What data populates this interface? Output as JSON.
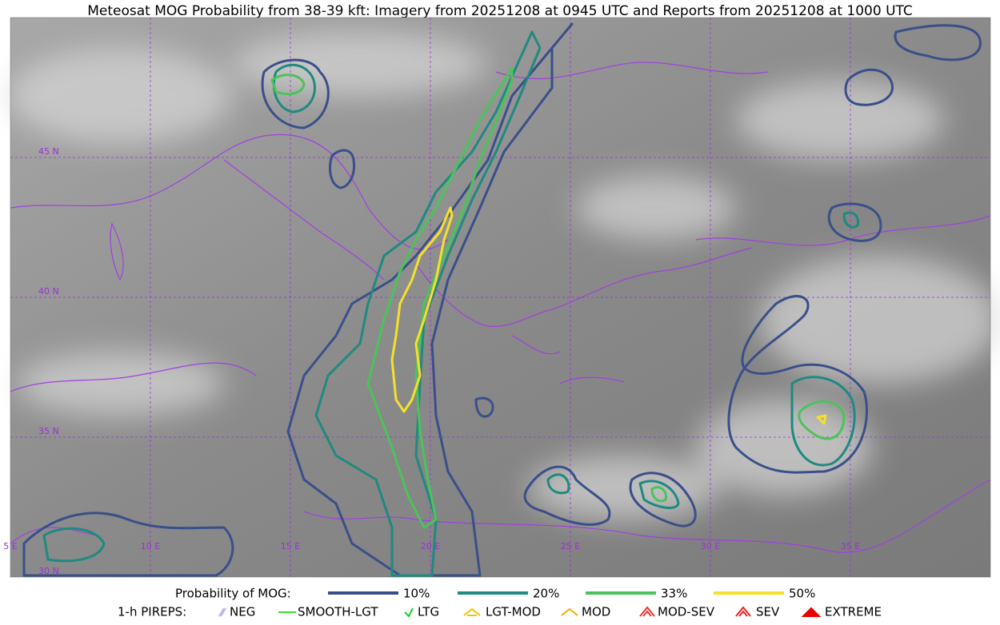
{
  "title": "Meteosat MOG Probability from 38-39 kft: Imagery from 20251208 at 0945 UTC and Reports from 20251208 at 1000 UTC",
  "lat_labels": [
    "45 N",
    "40 N",
    "35 N",
    "30 N"
  ],
  "lon_labels": [
    "5 E",
    "10 E",
    "15 E",
    "20 E",
    "25 E",
    "30 E",
    "35 E"
  ],
  "probability_legend": {
    "title": "Probability of MOG:",
    "entries": [
      {
        "label": "10%",
        "color": "#3a4f8a"
      },
      {
        "label": "20%",
        "color": "#1f8a80"
      },
      {
        "label": "33%",
        "color": "#4cc35a"
      },
      {
        "label": "50%",
        "color": "#f5e02a"
      }
    ]
  },
  "pirep_legend": {
    "title": "1-h PIREPS:",
    "entries": [
      {
        "label": "NEG",
        "color": "#b8b8f0"
      },
      {
        "label": "SMOOTH-LGT",
        "color": "#33dd33"
      },
      {
        "label": "LTG",
        "color": "#22cc22"
      },
      {
        "label": "LGT-MOD",
        "color": "#f5c000"
      },
      {
        "label": "MOD",
        "color": "#f5b000"
      },
      {
        "label": "MOD-SEV",
        "color": "#ee3333"
      },
      {
        "label": "SEV",
        "color": "#ee2222"
      },
      {
        "label": "EXTREME",
        "color": "#ee0000"
      }
    ]
  }
}
